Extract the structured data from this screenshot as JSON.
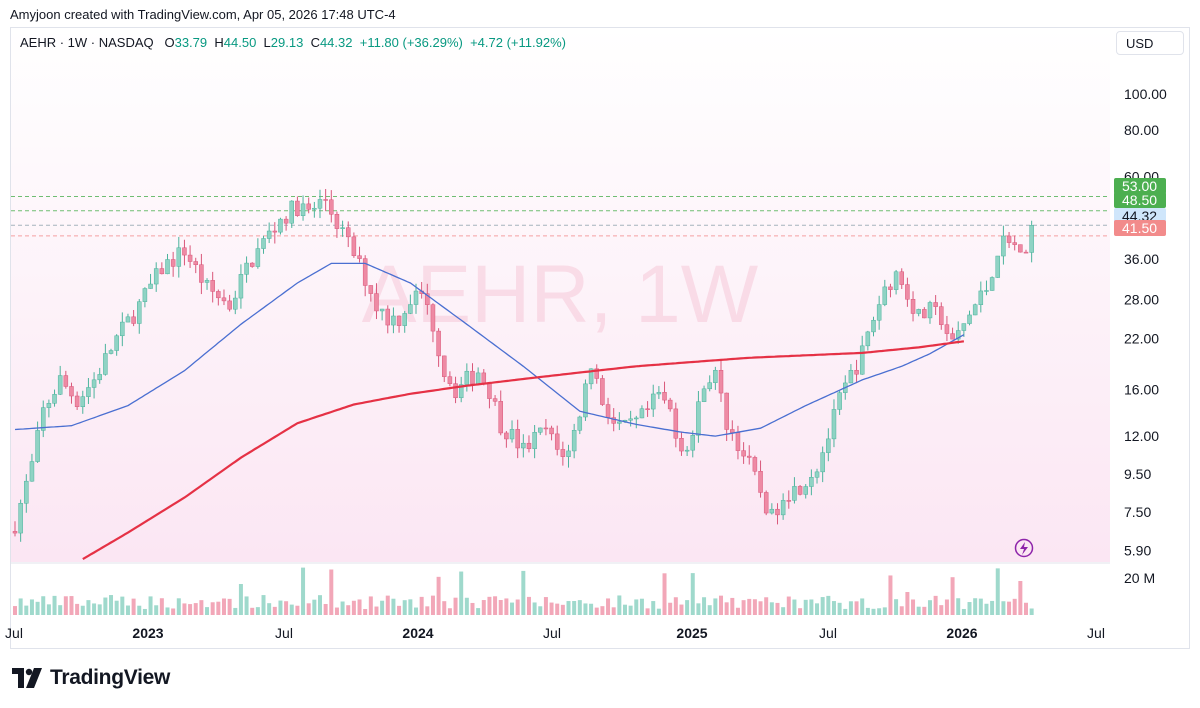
{
  "caption": "Amyjoon created with TradingView.com, Apr 05, 2026 17:48 UTC-4",
  "legend": {
    "symbol": "AEHR · 1W · NASDAQ",
    "o_label": "O",
    "o_value": "33.79",
    "h_label": "H",
    "h_value": "44.50",
    "l_label": "L",
    "l_value": "29.13",
    "c_label": "C",
    "c_value": "44.32",
    "change": "+11.80 (+36.29%)",
    "extra_change": "+4.72 (+11.92%)"
  },
  "currency": "USD",
  "watermark": "AEHR, 1W",
  "brand": "TradingView",
  "colors": {
    "up": "#8fd3c4",
    "down": "#ee8aa4",
    "up_border": "#4bb39c",
    "down_border": "#d9577a",
    "ma_fast": "#4a6fd1",
    "ma_slow": "#e53145",
    "green_badge": "#4caf50",
    "last_price_badge": "#cfe6fb",
    "red_badge": "#f28b8b"
  },
  "chart_data": {
    "type": "candlestick",
    "scale": "log",
    "ylim": [
      5.5,
      125
    ],
    "y_ticks": [
      "100.00",
      "80.00",
      "60.00",
      "36.00",
      "28.00",
      "22.00",
      "16.00",
      "12.00",
      "9.50",
      "7.50",
      "5.90"
    ],
    "x_ticks": [
      "Jul",
      "2023",
      "Jul",
      "2024",
      "Jul",
      "2025",
      "Jul",
      "2026",
      "Jul"
    ],
    "horizontal_levels": [
      {
        "price": 53.0,
        "label": "53.00",
        "kind": "green"
      },
      {
        "price": 48.5,
        "label": "48.50",
        "kind": "green"
      },
      {
        "price": 44.32,
        "label": "44.32",
        "kind": "last"
      },
      {
        "price": 41.5,
        "label": "41.50",
        "kind": "red"
      }
    ],
    "series": [
      {
        "kind": "moving-average-fast",
        "anchors": [
          [
            0,
            12.5
          ],
          [
            10,
            12.8
          ],
          [
            20,
            14.5
          ],
          [
            30,
            18
          ],
          [
            40,
            24
          ],
          [
            50,
            31
          ],
          [
            56,
            35
          ],
          [
            62,
            35
          ],
          [
            70,
            31
          ],
          [
            80,
            24
          ],
          [
            90,
            18.5
          ],
          [
            100,
            14
          ],
          [
            110,
            12.9
          ],
          [
            118,
            12.3
          ],
          [
            124,
            12
          ],
          [
            132,
            12.6
          ],
          [
            140,
            14.5
          ],
          [
            150,
            17
          ],
          [
            157,
            18.5
          ],
          [
            162,
            20
          ],
          [
            168,
            22.5
          ]
        ]
      },
      {
        "kind": "moving-average-slow",
        "anchors": [
          [
            12,
            5.6
          ],
          [
            20,
            6.6
          ],
          [
            30,
            8.2
          ],
          [
            40,
            10.5
          ],
          [
            50,
            13
          ],
          [
            60,
            14.6
          ],
          [
            70,
            15.6
          ],
          [
            80,
            16.4
          ],
          [
            90,
            17.1
          ],
          [
            100,
            17.8
          ],
          [
            110,
            18.5
          ],
          [
            120,
            19
          ],
          [
            130,
            19.5
          ],
          [
            140,
            19.8
          ],
          [
            150,
            20.1
          ],
          [
            160,
            20.8
          ],
          [
            168,
            21.6
          ]
        ]
      }
    ],
    "volume_max_label": "20 M"
  }
}
